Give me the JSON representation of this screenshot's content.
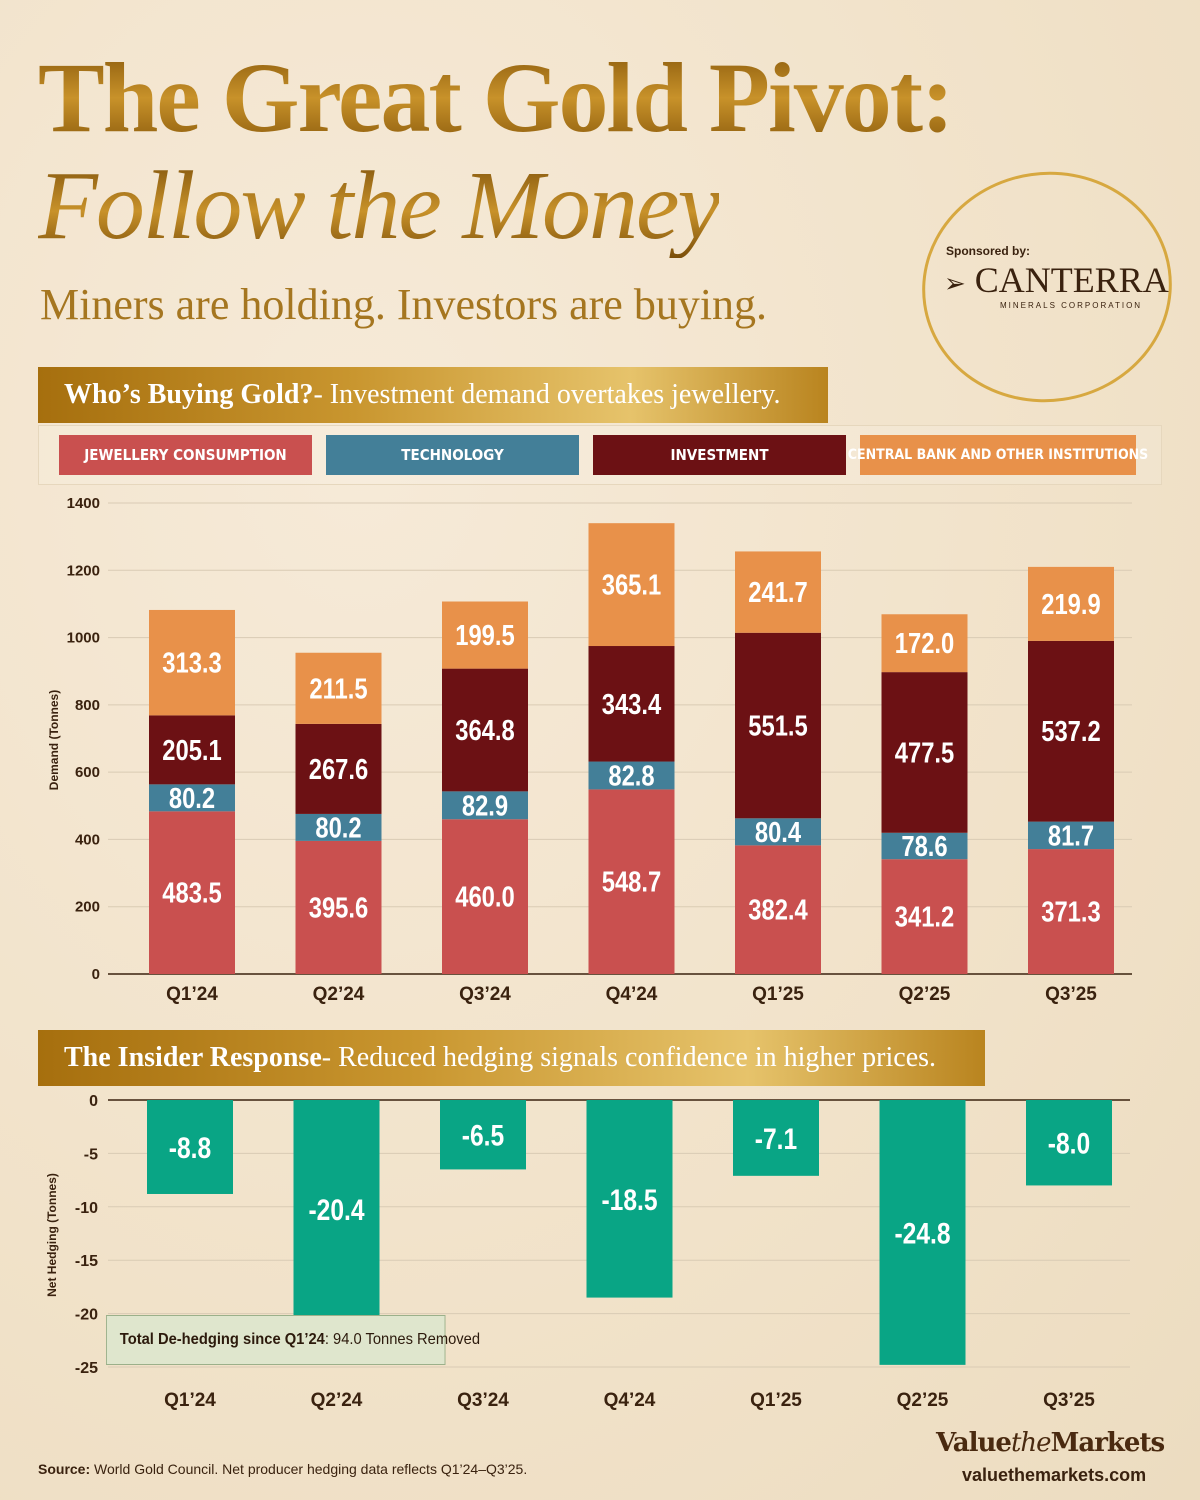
{
  "header": {
    "title_line1": "The Great Gold Pivot:",
    "title_line2": "Follow the Money",
    "subtitle": "Miners are holding. Investors are buying."
  },
  "sponsor": {
    "label": "Sponsored by:",
    "name": "CANTERRA",
    "tagline": "MINERALS CORPORATION"
  },
  "section1": {
    "title": "Who’s Buying Gold?",
    "desc": " - Investment demand overtakes jewellery."
  },
  "section2": {
    "title": "The Insider Response",
    "desc": " - Reduced hedging signals confidence in higher prices."
  },
  "colors": {
    "jewellery": "#c9504f",
    "technology": "#437f98",
    "investment": "#6c1114",
    "central_bank": "#e8914a",
    "hedging": "#09a585"
  },
  "chart_data": [
    {
      "type": "bar",
      "stacked": true,
      "ylabel": "Demand (Tonnes)",
      "ylim": [
        0,
        1400
      ],
      "yticks": [
        0,
        200,
        400,
        600,
        800,
        1000,
        1200,
        1400
      ],
      "grid": true,
      "legend": "top",
      "categories": [
        "Q1’24",
        "Q2’24",
        "Q3’24",
        "Q4’24",
        "Q1’25",
        "Q2’25",
        "Q3’25"
      ],
      "series": [
        {
          "name": "JEWELLERY CONSUMPTION",
          "key": "jewellery",
          "values": [
            483.5,
            395.6,
            460.0,
            548.7,
            382.4,
            341.2,
            371.3
          ]
        },
        {
          "name": "TECHNOLOGY",
          "key": "technology",
          "values": [
            80.2,
            80.2,
            82.9,
            82.8,
            80.4,
            78.6,
            81.7
          ]
        },
        {
          "name": "INVESTMENT",
          "key": "investment",
          "values": [
            205.1,
            267.6,
            364.8,
            343.4,
            551.5,
            477.5,
            537.2
          ]
        },
        {
          "name": "CENTRAL BANK AND OTHER INSTITUTIONS",
          "key": "central_bank",
          "values": [
            313.3,
            211.5,
            199.5,
            365.1,
            241.7,
            172.0,
            219.9
          ]
        }
      ]
    },
    {
      "type": "bar",
      "ylabel": "Net Hedging (Tonnes)",
      "ylim": [
        -25,
        0
      ],
      "yticks": [
        0,
        -5,
        -10,
        -15,
        -20,
        -25
      ],
      "grid": true,
      "categories": [
        "Q1’24",
        "Q2’24",
        "Q3’24",
        "Q4’24",
        "Q1’25",
        "Q2’25",
        "Q3’25"
      ],
      "values": [
        -8.8,
        -20.4,
        -6.5,
        -18.5,
        -7.1,
        -24.8,
        -8.0
      ],
      "annotation": {
        "bold": "Total De-hedging since Q1’24",
        "text": ": 94.0 Tonnes Removed"
      }
    }
  ],
  "footer": {
    "source_label": "Source:",
    "source_text": " World Gold Council. Net producer hedging data reflects Q1’24–Q3’25.",
    "brand_a": "Value",
    "brand_b": "the",
    "brand_c": "Markets",
    "url": "valuethemarkets.com"
  }
}
